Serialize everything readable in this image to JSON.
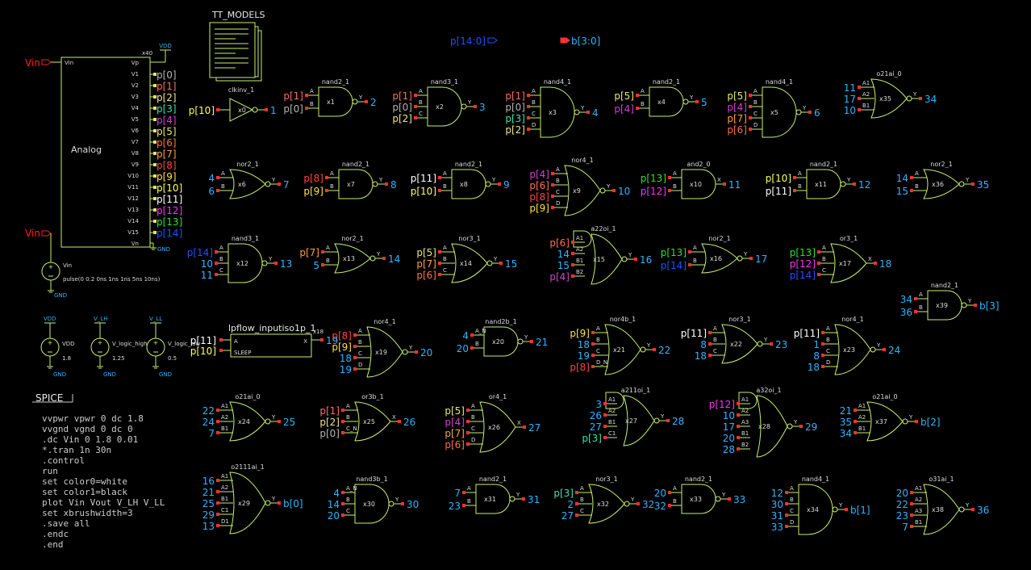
{
  "colors": {
    "wire": "#c8f06e",
    "dark": "#000000",
    "pin": "#ff3030"
  },
  "models_label": "TT_MODELS",
  "bus_in": "p[14:0]",
  "bus_out": "b[3:0]",
  "vin_label": "Vin",
  "analog": {
    "ref": "x40",
    "name": "Analog",
    "pin_vin": "Vin",
    "pin_vp": "Vp",
    "pin_vn": "Vn",
    "vdd": "VDD",
    "gnd": "GND",
    "vpins": [
      "V1",
      "V2",
      "V3",
      "V4",
      "V5",
      "V6",
      "V7",
      "V8",
      "V9",
      "V10",
      "V11",
      "V12",
      "V13",
      "V14",
      "V15"
    ],
    "outs": [
      "p[0]",
      "p[1]",
      "p[2]",
      "p[3]",
      "p[4]",
      "p[5]",
      "p[6]",
      "p[7]",
      "p[8]",
      "p[9]",
      "p[10]",
      "p[11]",
      "p[12]",
      "p[13]",
      "p[14]"
    ]
  },
  "vin_src": {
    "name": "Vin",
    "value": "pulse(0 0.2 0ns 1ns 1ns 5ns 10ns)",
    "gnd": "GND"
  },
  "sources": [
    {
      "top": "VDD",
      "name": "VDD",
      "value": "1.8",
      "gnd": "GND"
    },
    {
      "top": "V_LH",
      "name": "V_logic_high",
      "value": "1.25",
      "gnd": "GND"
    },
    {
      "top": "V_LL",
      "name": "V_logic_low",
      "value": "0.5",
      "gnd": "GND"
    }
  ],
  "iso": {
    "title": "lpflow_inputiso1p_1",
    "ref": "x18",
    "pin_a": "A",
    "pin_sleep": "SLEEP",
    "pin_x": "X",
    "in_a": "p[11]",
    "in_sleep": "p[10]",
    "out": "19"
  },
  "spice_title": "SPICE",
  "spice_lines": [
    "vvpwr vpwr 0 dc 1.8",
    "vvgnd vgnd 0 dc 0",
    ".dc Vin 0 1.8 0.01",
    "*.tran 1n 30n",
    ".control",
    "run",
    "set color0=white",
    "set color1=black",
    "plot Vin Vout V_LH V_LL",
    "set xbrushwidth=3",
    ".save all",
    ".endc",
    ".end"
  ],
  "gates": [
    {
      "kind": "inv",
      "name": "clkinv_1",
      "ref": "x0",
      "inputs": [
        {
          "pin": "",
          "net": "p[10]"
        }
      ],
      "out": "1",
      "opin": ""
    },
    {
      "kind": "and",
      "name": "nand2_1",
      "ref": "x1",
      "inputs": [
        {
          "pin": "A",
          "net": "p[1]"
        },
        {
          "pin": "B",
          "net": "p[0]"
        }
      ],
      "out": "2",
      "opin": "Y"
    },
    {
      "kind": "and",
      "name": "nand3_1",
      "ref": "x2",
      "inputs": [
        {
          "pin": "A",
          "net": "p[1]"
        },
        {
          "pin": "B",
          "net": "p[0]"
        },
        {
          "pin": "C",
          "net": "p[2]"
        }
      ],
      "out": "3",
      "opin": "Y"
    },
    {
      "kind": "and",
      "name": "nand4_1",
      "ref": "x3",
      "inputs": [
        {
          "pin": "A",
          "net": "p[1]"
        },
        {
          "pin": "B",
          "net": "p[0]"
        },
        {
          "pin": "C",
          "net": "p[3]"
        },
        {
          "pin": "D",
          "net": "p[2]"
        }
      ],
      "out": "4",
      "opin": "Y"
    },
    {
      "kind": "and",
      "name": "nand2_1",
      "ref": "x4",
      "inputs": [
        {
          "pin": "A",
          "net": "p[5]"
        },
        {
          "pin": "B",
          "net": "p[4]"
        }
      ],
      "out": "5",
      "opin": "Y"
    },
    {
      "kind": "and",
      "name": "nand4_1",
      "ref": "x5",
      "inputs": [
        {
          "pin": "A",
          "net": "p[5]"
        },
        {
          "pin": "B",
          "net": "p[4]"
        },
        {
          "pin": "C",
          "net": "p[7]"
        },
        {
          "pin": "D",
          "net": "p[6]"
        }
      ],
      "out": "6",
      "opin": "Y"
    },
    {
      "kind": "or",
      "name": "o21ai_0",
      "ref": "x35",
      "inputs": [
        {
          "pin": "A1",
          "net": "11"
        },
        {
          "pin": "A2",
          "net": "17"
        },
        {
          "pin": "B1",
          "net": "10"
        }
      ],
      "out": "34",
      "opin": "Y"
    },
    {
      "kind": "or",
      "name": "nor2_1",
      "ref": "x6",
      "inputs": [
        {
          "pin": "A",
          "net": "4"
        },
        {
          "pin": "B",
          "net": "6"
        }
      ],
      "out": "7",
      "opin": "Y"
    },
    {
      "kind": "and",
      "name": "nand2_1",
      "ref": "x7",
      "inputs": [
        {
          "pin": "A",
          "net": "p[8]"
        },
        {
          "pin": "B",
          "net": "p[9]"
        }
      ],
      "out": "8",
      "opin": "Y"
    },
    {
      "kind": "and",
      "name": "nand2_1",
      "ref": "x8",
      "inputs": [
        {
          "pin": "A",
          "net": "p[11]"
        },
        {
          "pin": "B",
          "net": "p[10]"
        }
      ],
      "out": "9",
      "opin": "Y"
    },
    {
      "kind": "or",
      "name": "nor4_1",
      "ref": "x9",
      "inputs": [
        {
          "pin": "A",
          "net": "p[4]"
        },
        {
          "pin": "B",
          "net": "p[6]"
        },
        {
          "pin": "C",
          "net": "p[8]"
        },
        {
          "pin": "D",
          "net": "p[9]"
        }
      ],
      "out": "10",
      "opin": "Y"
    },
    {
      "kind": "and",
      "name": "and2_0",
      "ref": "x10",
      "inputs": [
        {
          "pin": "A",
          "net": "p[13]"
        },
        {
          "pin": "B",
          "net": "p[12]"
        }
      ],
      "out": "11",
      "opin": "X"
    },
    {
      "kind": "and",
      "name": "nand2_1",
      "ref": "x11",
      "inputs": [
        {
          "pin": "A",
          "net": "p[10]"
        },
        {
          "pin": "B",
          "net": "p[11]"
        }
      ],
      "out": "12",
      "opin": "Y"
    },
    {
      "kind": "or",
      "name": "nor2_1",
      "ref": "x36",
      "inputs": [
        {
          "pin": "A",
          "net": "14"
        },
        {
          "pin": "B",
          "net": "15"
        }
      ],
      "out": "35",
      "opin": "Y"
    },
    {
      "kind": "and",
      "name": "nand3_1",
      "ref": "x12",
      "inputs": [
        {
          "pin": "A",
          "net": "p[14]"
        },
        {
          "pin": "B",
          "net": "10"
        },
        {
          "pin": "C",
          "net": "11"
        }
      ],
      "out": "13",
      "opin": "Y"
    },
    {
      "kind": "or",
      "name": "nor2_1",
      "ref": "x13",
      "inputs": [
        {
          "pin": "A",
          "net": "p[7]"
        },
        {
          "pin": "B",
          "net": "5"
        }
      ],
      "out": "14",
      "opin": "Y"
    },
    {
      "kind": "or",
      "name": "nor3_1",
      "ref": "x14",
      "inputs": [
        {
          "pin": "A",
          "net": "p[5]"
        },
        {
          "pin": "B",
          "net": "p[7]"
        },
        {
          "pin": "C",
          "net": "p[6]"
        }
      ],
      "out": "15",
      "opin": "Y"
    },
    {
      "kind": "aoi",
      "name": "a22oi_1",
      "ref": "x15",
      "inputs": [
        {
          "pin": "A1",
          "net": "p[6]"
        },
        {
          "pin": "A2",
          "net": "14"
        },
        {
          "pin": "B1",
          "net": "15"
        },
        {
          "pin": "B2",
          "net": "p[4]"
        }
      ],
      "out": "16",
      "opin": "Y"
    },
    {
      "kind": "or",
      "name": "nor2_1",
      "ref": "x16",
      "inputs": [
        {
          "pin": "A",
          "net": "p[13]"
        },
        {
          "pin": "B",
          "net": "p[14]"
        }
      ],
      "out": "17",
      "opin": "Y"
    },
    {
      "kind": "or",
      "name": "or3_1",
      "ref": "x17",
      "inputs": [
        {
          "pin": "A",
          "net": "p[13]"
        },
        {
          "pin": "B",
          "net": "p[12]"
        },
        {
          "pin": "C",
          "net": "p[14]"
        }
      ],
      "out": "18",
      "opin": "X"
    },
    {
      "kind": "and",
      "name": "nand2_1",
      "ref": "x39",
      "inputs": [
        {
          "pin": "A",
          "net": "34"
        },
        {
          "pin": "B",
          "net": "36"
        }
      ],
      "out": "b[3]",
      "opin": "Y"
    },
    {
      "kind": "or",
      "name": "nor4_1",
      "ref": "x19",
      "inputs": [
        {
          "pin": "A",
          "net": "p[8]"
        },
        {
          "pin": "B",
          "net": "p[9]"
        },
        {
          "pin": "C",
          "net": "18"
        },
        {
          "pin": "D",
          "net": "19"
        }
      ],
      "out": "20",
      "opin": "Y"
    },
    {
      "kind": "and",
      "name": "nand2b_1",
      "ref": "x20",
      "inputs": [
        {
          "pin": "A_N",
          "net": "4"
        },
        {
          "pin": "B",
          "net": "20"
        }
      ],
      "out": "21",
      "opin": "Y"
    },
    {
      "kind": "or",
      "name": "nor4b_1",
      "ref": "x21",
      "inputs": [
        {
          "pin": "A",
          "net": "p[9]"
        },
        {
          "pin": "B",
          "net": "18"
        },
        {
          "pin": "C",
          "net": "19"
        },
        {
          "pin": "D_N",
          "net": "p[8]"
        }
      ],
      "out": "22",
      "opin": "Y"
    },
    {
      "kind": "or",
      "name": "nor3_1",
      "ref": "x22",
      "inputs": [
        {
          "pin": "A",
          "net": "p[11]"
        },
        {
          "pin": "B",
          "net": "8"
        },
        {
          "pin": "C",
          "net": "18"
        }
      ],
      "out": "23",
      "opin": "Y"
    },
    {
      "kind": "or",
      "name": "nor4_1",
      "ref": "x23",
      "inputs": [
        {
          "pin": "A",
          "net": "p[11]"
        },
        {
          "pin": "B",
          "net": "1"
        },
        {
          "pin": "C",
          "net": "8"
        },
        {
          "pin": "D",
          "net": "18"
        }
      ],
      "out": "24",
      "opin": "Y"
    },
    {
      "kind": "or",
      "name": "o21ai_0",
      "ref": "x24",
      "inputs": [
        {
          "pin": "A1",
          "net": "22"
        },
        {
          "pin": "A2",
          "net": "24"
        },
        {
          "pin": "B1",
          "net": "7"
        }
      ],
      "out": "25",
      "opin": "Y"
    },
    {
      "kind": "or",
      "name": "or3b_1",
      "ref": "x25",
      "inputs": [
        {
          "pin": "A",
          "net": "p[1]"
        },
        {
          "pin": "B",
          "net": "p[2]"
        },
        {
          "pin": "C_N",
          "net": "p[0]"
        }
      ],
      "out": "26",
      "opin": "X"
    },
    {
      "kind": "or",
      "name": "or4_1",
      "ref": "x26",
      "inputs": [
        {
          "pin": "A",
          "net": "p[5]"
        },
        {
          "pin": "B",
          "net": "p[4]"
        },
        {
          "pin": "C",
          "net": "p[7]"
        },
        {
          "pin": "D",
          "net": "p[6]"
        }
      ],
      "out": "27",
      "opin": "X"
    },
    {
      "kind": "aoi",
      "name": "a211oi_1",
      "ref": "x27",
      "inputs": [
        {
          "pin": "A1",
          "net": "3"
        },
        {
          "pin": "A2",
          "net": "26"
        },
        {
          "pin": "B1",
          "net": "27"
        },
        {
          "pin": "C1",
          "net": "p[3]"
        }
      ],
      "out": "28",
      "opin": "Y"
    },
    {
      "kind": "aoi",
      "name": "a32oi_1",
      "ref": "x28",
      "inputs": [
        {
          "pin": "A1",
          "net": "p[12]"
        },
        {
          "pin": "A2",
          "net": "10"
        },
        {
          "pin": "A3",
          "net": "17"
        },
        {
          "pin": "B1",
          "net": "20"
        },
        {
          "pin": "B2",
          "net": "28"
        }
      ],
      "out": "29",
      "opin": "Y"
    },
    {
      "kind": "or",
      "name": "o21ai_0",
      "ref": "x37",
      "inputs": [
        {
          "pin": "A1",
          "net": "21"
        },
        {
          "pin": "A2",
          "net": "35"
        },
        {
          "pin": "B1",
          "net": "34"
        }
      ],
      "out": "b[2]",
      "opin": "Y"
    },
    {
      "kind": "or",
      "name": "o2111ai_1",
      "ref": "x29",
      "inputs": [
        {
          "pin": "A1",
          "net": "16"
        },
        {
          "pin": "A2",
          "net": "21"
        },
        {
          "pin": "B1",
          "net": "25"
        },
        {
          "pin": "C1",
          "net": "29"
        },
        {
          "pin": "D1",
          "net": "13"
        }
      ],
      "out": "b[0]",
      "opin": "Y"
    },
    {
      "kind": "and",
      "name": "nand3b_1",
      "ref": "x30",
      "inputs": [
        {
          "pin": "A_N",
          "net": "4"
        },
        {
          "pin": "B",
          "net": "14"
        },
        {
          "pin": "C",
          "net": "20"
        }
      ],
      "out": "30",
      "opin": "Y"
    },
    {
      "kind": "and",
      "name": "nand2_1",
      "ref": "x31",
      "inputs": [
        {
          "pin": "A",
          "net": "7"
        },
        {
          "pin": "B",
          "net": "23"
        }
      ],
      "out": "31",
      "opin": "Y"
    },
    {
      "kind": "or",
      "name": "nor3_1",
      "ref": "x32",
      "inputs": [
        {
          "pin": "A",
          "net": "p[3]"
        },
        {
          "pin": "B",
          "net": "2"
        },
        {
          "pin": "C",
          "net": "27"
        }
      ],
      "out": "32",
      "opin": "Y"
    },
    {
      "kind": "and",
      "name": "nand2_1",
      "ref": "x33",
      "inputs": [
        {
          "pin": "A",
          "net": "20"
        },
        {
          "pin": "B",
          "net": "32"
        }
      ],
      "out": "33",
      "opin": "Y"
    },
    {
      "kind": "and",
      "name": "nand4_1",
      "ref": "x34",
      "inputs": [
        {
          "pin": "A",
          "net": "12"
        },
        {
          "pin": "B",
          "net": "30"
        },
        {
          "pin": "C",
          "net": "31"
        },
        {
          "pin": "D",
          "net": "33"
        }
      ],
      "out": "b[1]",
      "opin": "Y"
    },
    {
      "kind": "or",
      "name": "o31ai_1",
      "ref": "x38",
      "inputs": [
        {
          "pin": "A1",
          "net": "20"
        },
        {
          "pin": "A2",
          "net": "22"
        },
        {
          "pin": "A3",
          "net": "23"
        },
        {
          "pin": "B1",
          "net": "7"
        }
      ],
      "out": "36",
      "opin": "Y"
    }
  ]
}
